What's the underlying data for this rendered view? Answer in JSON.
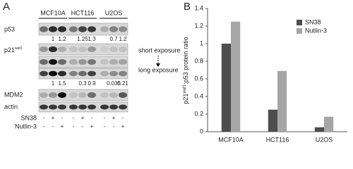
{
  "panel_a": {
    "label": "A",
    "cell_lines": [
      "MCF10A",
      "HCT116",
      "U2OS"
    ],
    "p53": "p53",
    "p21": [
      "p21",
      "waf1"
    ],
    "short_exposure": "short exposure",
    "long_exposure": "long exposure",
    "mdm2": "MDM2",
    "actin": "actin",
    "p53_quant": [
      "1",
      "1.2",
      "1.25",
      "1.3",
      "0.7",
      "1.2"
    ],
    "p21_quant": [
      "1",
      "1.5",
      "0.3",
      "0.9",
      "0.035",
      "0.21"
    ],
    "treatments": [
      {
        "name": "SN38",
        "signs": [
          "-",
          "+",
          "-",
          "-",
          "+",
          "-",
          "-",
          "+",
          "-"
        ]
      },
      {
        "name": "Nutlin-3",
        "signs": [
          "-",
          "-",
          "+",
          "-",
          "-",
          "+",
          "-",
          "-",
          "+"
        ]
      }
    ]
  },
  "chart_data": {
    "type": "bar",
    "panel_label": "B",
    "ylabel": [
      "p21",
      "waf1",
      ":p53 protein ratio"
    ],
    "categories": [
      "MCF10A",
      "HCT116",
      "U2OS"
    ],
    "series": [
      {
        "name": "SN38",
        "color": "#4d4d4d",
        "values": [
          1.0,
          0.25,
          0.05
        ]
      },
      {
        "name": "Nutlin-3",
        "color": "#a6a6a6",
        "values": [
          1.25,
          0.69,
          0.17
        ]
      }
    ],
    "ylim": [
      0,
      1.4
    ],
    "yticks": [
      0,
      0.2,
      0.4,
      0.6,
      0.8,
      1,
      1.2,
      1.4
    ],
    "legend": "upper right"
  }
}
